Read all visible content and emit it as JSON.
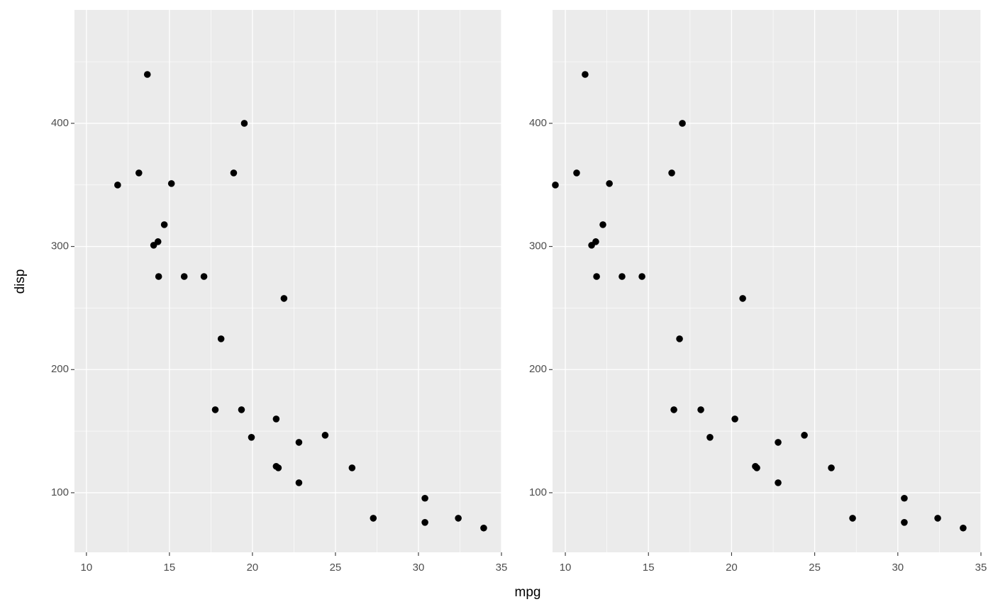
{
  "x_label": "mpg",
  "y_label": "disp",
  "chart_data": [
    {
      "type": "scatter",
      "color": "#000000",
      "grid": true,
      "xlim": [
        9.28,
        35
      ],
      "ylim": [
        51.6,
        492.1
      ],
      "xticks": [
        10,
        15,
        20,
        25,
        30,
        35
      ],
      "yticks": [
        100,
        200,
        300,
        400
      ],
      "x": [
        13.67,
        11.88,
        13.16,
        15.12,
        19.51,
        18.87,
        14.69,
        14.05,
        14.31,
        14.35,
        15.89,
        17.08,
        21.9,
        18.11,
        17.76,
        19.34,
        21.43,
        19.94,
        22.8,
        24.38,
        21.43,
        21.56,
        26.0,
        22.8,
        27.28,
        30.39,
        30.39,
        32.4,
        33.93
      ],
      "values": [
        439.7,
        349.9,
        359.7,
        351.1,
        400,
        359.7,
        317.7,
        301,
        303.9,
        275.6,
        275.6,
        275.6,
        257.8,
        225,
        167.4,
        167.4,
        159.9,
        145,
        140.9,
        146.7,
        121.4,
        120.2,
        120.2,
        108.1,
        79.3,
        95.5,
        75.9,
        79.3,
        71.3
      ]
    },
    {
      "type": "scatter",
      "color": "#000000",
      "grid": true,
      "xlim": [
        9.23,
        35
      ],
      "ylim": [
        51.6,
        492.1
      ],
      "xticks": [
        10,
        15,
        20,
        25,
        30,
        35
      ],
      "yticks": [
        100,
        200,
        300,
        400
      ],
      "x": [
        11.19,
        9.4,
        10.68,
        12.65,
        17.04,
        16.4,
        12.26,
        11.58,
        11.83,
        11.88,
        13.41,
        14.61,
        20.67,
        16.87,
        16.53,
        18.15,
        20.2,
        18.7,
        22.8,
        24.38,
        21.43,
        21.52,
        26.0,
        22.8,
        27.28,
        30.39,
        30.39,
        32.4,
        33.93
      ],
      "values": [
        439.7,
        349.9,
        359.7,
        351.1,
        400,
        359.7,
        317.7,
        301,
        303.9,
        275.6,
        275.6,
        275.6,
        257.8,
        225,
        167.4,
        167.4,
        159.9,
        145,
        140.9,
        146.7,
        121.4,
        120.2,
        120.2,
        108.1,
        79.3,
        95.5,
        75.9,
        79.3,
        71.3
      ]
    }
  ]
}
